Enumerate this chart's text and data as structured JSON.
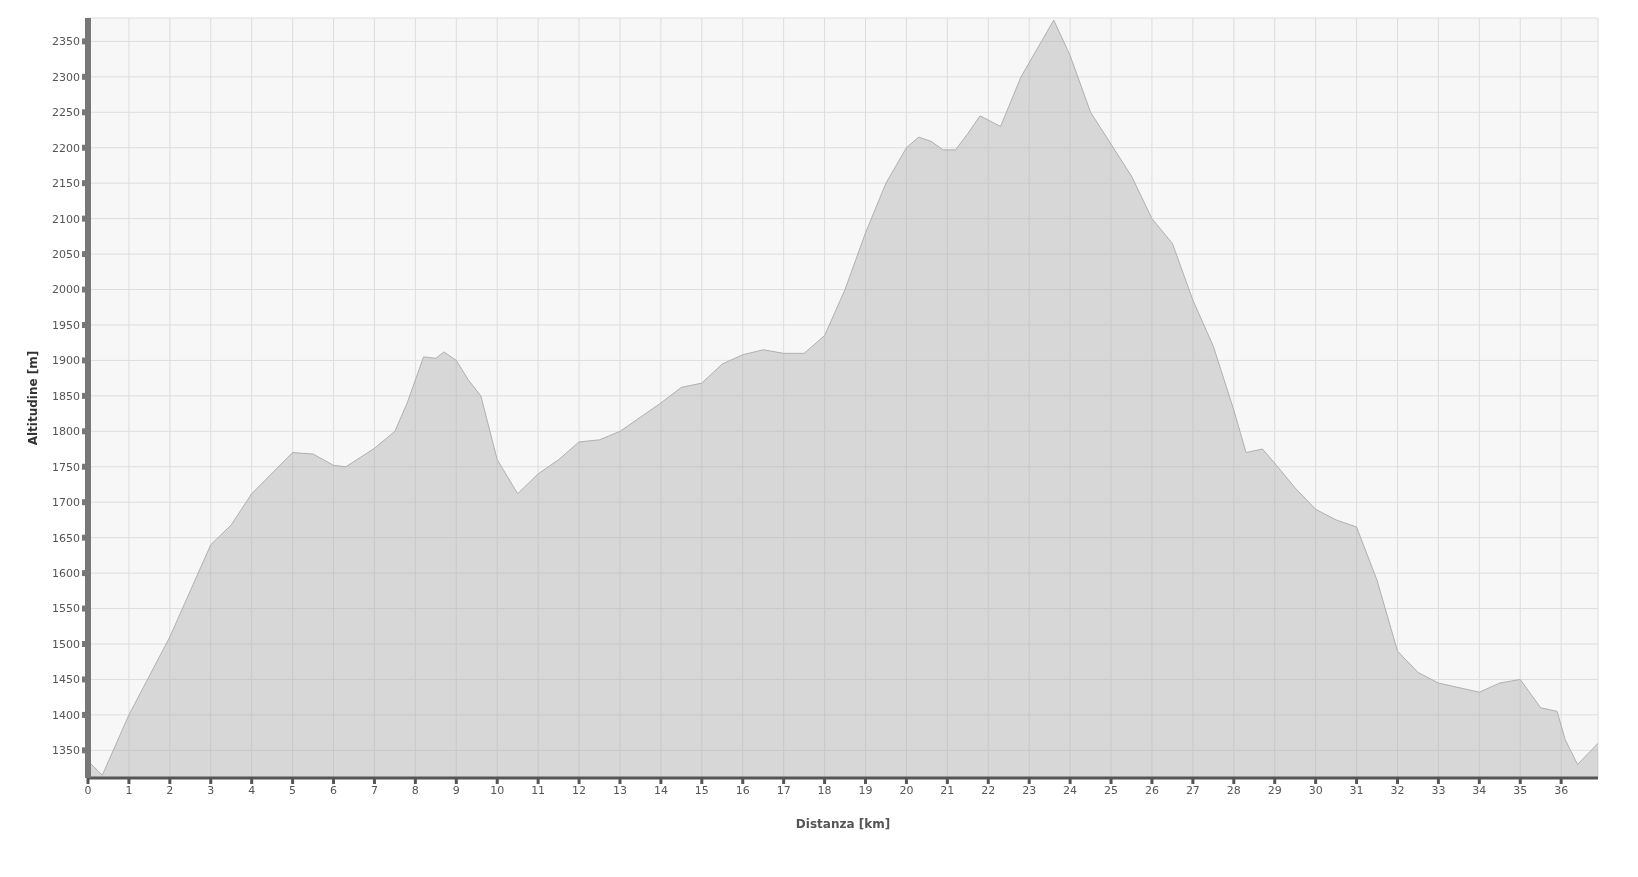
{
  "chart_data": {
    "type": "area",
    "xlabel": "Distanza [km]",
    "ylabel": "Altitudine [m]",
    "xlim": [
      0,
      36.9
    ],
    "xticks": [
      0,
      1,
      2,
      3,
      4,
      5,
      6,
      7,
      8,
      9,
      10,
      11,
      12,
      13,
      14,
      15,
      16,
      17,
      18,
      19,
      20,
      21,
      22,
      23,
      24,
      25,
      26,
      27,
      28,
      29,
      30,
      31,
      32,
      33,
      34,
      35,
      36
    ],
    "ylim": [
      1311,
      2383
    ],
    "yticks": [
      1350,
      1400,
      1450,
      1500,
      1550,
      1600,
      1650,
      1700,
      1750,
      1800,
      1850,
      1900,
      1950,
      2000,
      2050,
      2100,
      2150,
      2200,
      2250,
      2300,
      2350
    ],
    "grid": true,
    "x": [
      0,
      0.35,
      1,
      2,
      3,
      3.5,
      4,
      5,
      5.5,
      6,
      6.3,
      7,
      7.5,
      7.8,
      8.2,
      8.5,
      8.7,
      9,
      9.3,
      9.6,
      10,
      10.5,
      11,
      11.5,
      12,
      12.5,
      13,
      13.5,
      14,
      14.5,
      15,
      15.5,
      16,
      16.5,
      17,
      17.5,
      18,
      18.5,
      19,
      19.5,
      20,
      20.3,
      20.6,
      20.9,
      21.2,
      21.5,
      21.8,
      22.3,
      22.8,
      23.3,
      23.6,
      24,
      24.5,
      25,
      25.5,
      26,
      26.5,
      27,
      27.5,
      28,
      28.3,
      28.7,
      29,
      29.5,
      30,
      30.5,
      31,
      31.5,
      32,
      32.5,
      33,
      34,
      34.5,
      35,
      35.5,
      35.9,
      36.1,
      36.4,
      36.9
    ],
    "series": [
      {
        "color": "#b0b0b0",
        "values": [
          1335,
          1315,
          1400,
          1510,
          1640,
          1668,
          1712,
          1770,
          1768,
          1752,
          1750,
          1776,
          1800,
          1840,
          1905,
          1903,
          1912,
          1900,
          1872,
          1850,
          1760,
          1712,
          1740,
          1760,
          1785,
          1788,
          1800,
          1820,
          1840,
          1862,
          1868,
          1895,
          1908,
          1915,
          1910,
          1910,
          1935,
          2000,
          2080,
          2150,
          2200,
          2215,
          2209,
          2197,
          2197,
          2220,
          2245,
          2230,
          2300,
          2350,
          2380,
          2330,
          2250,
          2205,
          2160,
          2100,
          2065,
          1985,
          1920,
          1830,
          1770,
          1775,
          1755,
          1720,
          1690,
          1675,
          1665,
          1590,
          1490,
          1460,
          1445,
          1432,
          1445,
          1450,
          1410,
          1405,
          1365,
          1330,
          1360
        ]
      }
    ]
  }
}
